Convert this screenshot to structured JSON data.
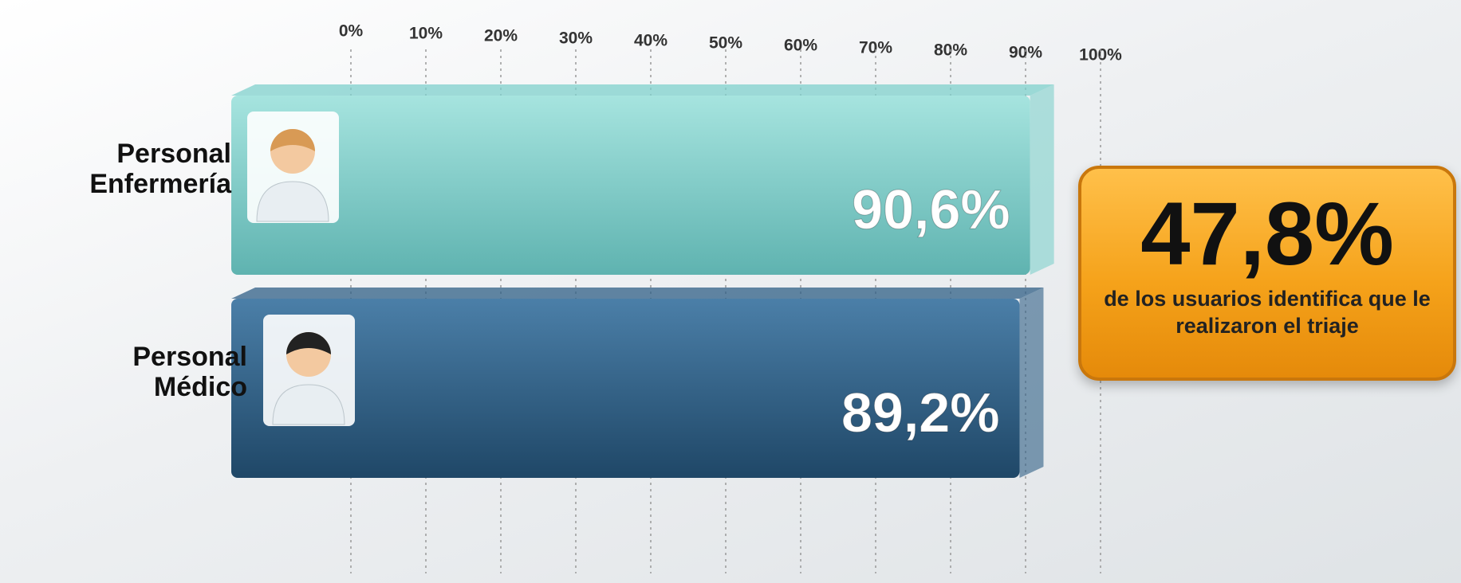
{
  "chart_data": {
    "type": "bar",
    "orientation": "horizontal",
    "categories": [
      "Personal Enfermería",
      "Personal Médico"
    ],
    "series": [
      {
        "values": [
          90.6,
          89.2
        ],
        "value_labels": [
          "90,6%",
          "89,2%"
        ],
        "colors": [
          "#7fd0cc",
          "#2f5f85"
        ]
      }
    ],
    "xlim": [
      0,
      100
    ],
    "xticks": [
      {
        "value": 0,
        "label": "0%"
      },
      {
        "value": 10,
        "label": "10%"
      },
      {
        "value": 20,
        "label": "20%"
      },
      {
        "value": 30,
        "label": "30%"
      },
      {
        "value": 40,
        "label": "40%"
      },
      {
        "value": 50,
        "label": "50%"
      },
      {
        "value": 60,
        "label": "60%"
      },
      {
        "value": 70,
        "label": "70%"
      },
      {
        "value": 80,
        "label": "80%"
      },
      {
        "value": 90,
        "label": "90%"
      },
      {
        "value": 100,
        "label": "100%"
      }
    ],
    "grid": true,
    "callout": {
      "label": "47,8%",
      "text": "de los usuarios identifica que le realizaron el triaje"
    }
  }
}
